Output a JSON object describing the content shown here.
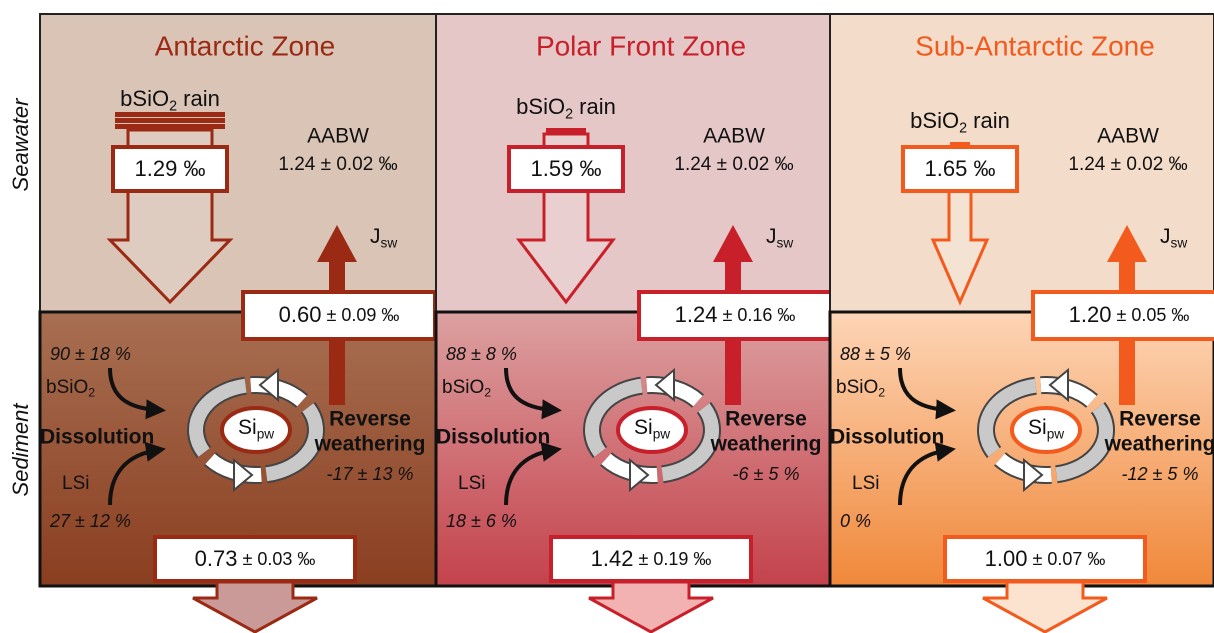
{
  "side_labels": {
    "seawater": "Seawater",
    "sediment": "Sediment"
  },
  "zones": [
    {
      "title": "Antarctic Zone",
      "color": "#9b2a14",
      "rain_label": {
        "main": "bSiO",
        "sub": "2",
        "rest": " rain"
      },
      "rain_value": "1.29 ‰",
      "aabw_label": "AABW",
      "aabw_value": "1.24 ± 0.02 ‰",
      "flux_label": {
        "main": "J",
        "sub": "sw"
      },
      "flux_value": {
        "main": "0.60",
        "rest": " ± 0.09 ‰"
      },
      "bsio2_share": "90 ± 18 %",
      "bsio2_label": {
        "main": "bSiO",
        "sub": "2"
      },
      "dissolution_label": "Dissolution",
      "lsi_label": "LSi",
      "lsi_share": "27 ± 12 %",
      "pore_label": {
        "main": "Si",
        "sub": "pw"
      },
      "reverse_weathering_label": [
        "Reverse",
        "weathering"
      ],
      "reverse_weathering_share": "-17 ± 13 %",
      "burial_value": {
        "main": "0.73",
        "rest": " ± 0.03 ‰"
      }
    },
    {
      "title": "Polar Front Zone",
      "color": "#c8202a",
      "rain_label": {
        "main": "bSiO",
        "sub": "2",
        "rest": " rain"
      },
      "rain_value": "1.59 ‰",
      "aabw_label": "AABW",
      "aabw_value": "1.24 ± 0.02 ‰",
      "flux_label": {
        "main": "J",
        "sub": "sw"
      },
      "flux_value": {
        "main": "1.24",
        "rest": " ± 0.16 ‰"
      },
      "bsio2_share": "88 ± 8 %",
      "bsio2_label": {
        "main": "bSiO",
        "sub": "2"
      },
      "dissolution_label": "Dissolution",
      "lsi_label": "LSi",
      "lsi_share": "18 ± 6 %",
      "pore_label": {
        "main": "Si",
        "sub": "pw"
      },
      "reverse_weathering_label": [
        "Reverse",
        "weathering"
      ],
      "reverse_weathering_share": "-6 ± 5 %",
      "burial_value": {
        "main": "1.42",
        "rest": " ± 0.19 ‰"
      }
    },
    {
      "title": "Sub-Antarctic Zone",
      "color": "#f25a1e",
      "rain_label": {
        "main": "bSiO",
        "sub": "2",
        "rest": " rain"
      },
      "rain_value": "1.65 ‰",
      "aabw_label": "AABW",
      "aabw_value": "1.24 ± 0.02 ‰",
      "flux_label": {
        "main": "J",
        "sub": "sw"
      },
      "flux_value": {
        "main": "1.20",
        "rest": " ± 0.05 ‰"
      },
      "bsio2_share": "88 ± 5 %",
      "bsio2_label": {
        "main": "bSiO",
        "sub": "2"
      },
      "dissolution_label": "Dissolution",
      "lsi_label": "LSi",
      "lsi_share": "0 %",
      "pore_label": {
        "main": "Si",
        "sub": "pw"
      },
      "reverse_weathering_label": [
        "Reverse",
        "weathering"
      ],
      "reverse_weathering_share": "-12 ± 5 %",
      "burial_value": {
        "main": "1.00",
        "rest": " ± 0.07 ‰"
      }
    }
  ]
}
